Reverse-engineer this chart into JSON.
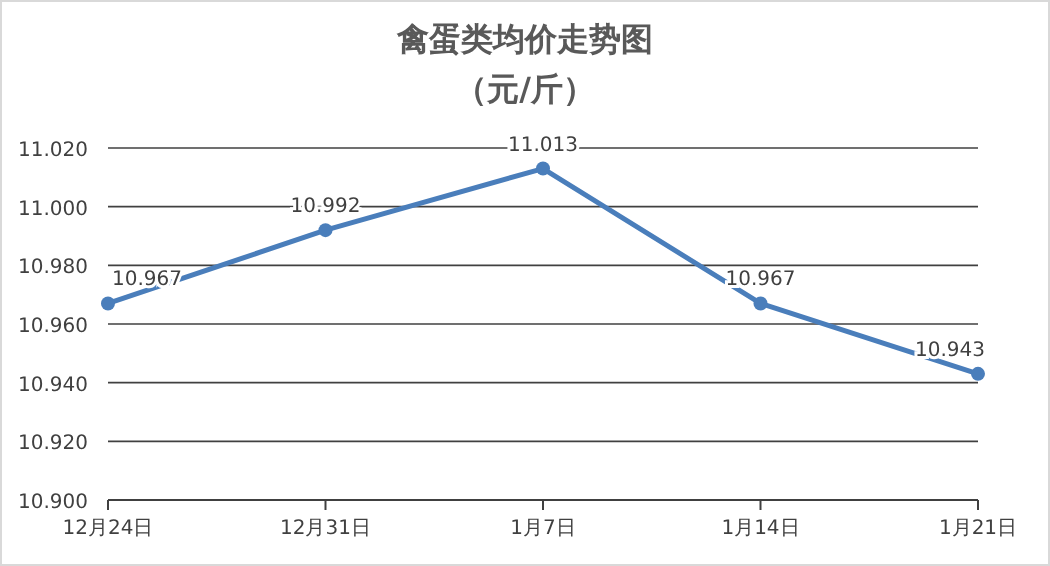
{
  "chart_data": {
    "type": "line",
    "title": "禽蛋类均价走势图",
    "subtitle": "（元/斤）",
    "categories": [
      "12月24日",
      "12月31日",
      "1月7日",
      "1月14日",
      "1月21日"
    ],
    "series": [
      {
        "color": "#4a7ebb",
        "values": [
          10.967,
          10.992,
          11.013,
          10.967,
          10.943
        ]
      }
    ],
    "ylim": [
      10.9,
      11.02
    ],
    "yticks": [
      {
        "value": 10.9,
        "label": "10.900"
      },
      {
        "value": 10.92,
        "label": "10.920"
      },
      {
        "value": 10.94,
        "label": "10.940"
      },
      {
        "value": 10.96,
        "label": "10.960"
      },
      {
        "value": 10.98,
        "label": "10.980"
      },
      {
        "value": 11.0,
        "label": "11.000"
      },
      {
        "value": 11.02,
        "label": "11.020"
      }
    ],
    "grid": "y",
    "marker": "circle",
    "line_style": "solid",
    "data_labels": true
  }
}
